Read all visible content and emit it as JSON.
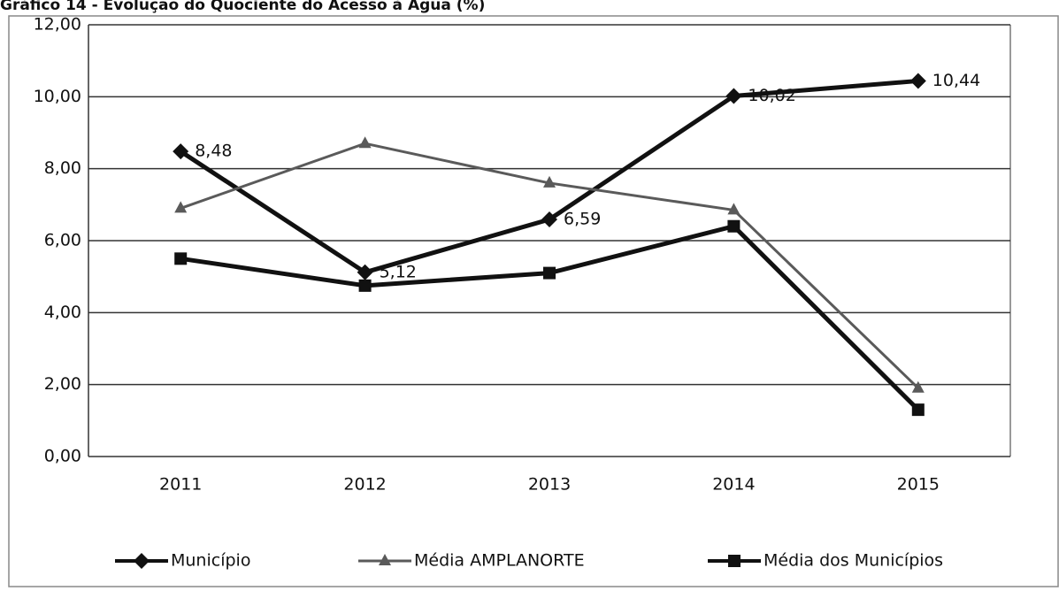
{
  "chart_data": {
    "type": "line",
    "title": "Gráfico 14 - Evolução do Quociente do Acesso à Água (%)",
    "categories": [
      "2011",
      "2012",
      "2013",
      "2014",
      "2015"
    ],
    "series": [
      {
        "name": "Município",
        "color": "#111111",
        "marker": "diamond",
        "values": [
          8.48,
          5.12,
          6.59,
          10.02,
          10.44
        ],
        "value_labels": [
          "8,48",
          "5,12",
          "6,59",
          "10,02",
          "10,44"
        ]
      },
      {
        "name": "Média AMPLANORTE",
        "color": "#5a5a5a",
        "marker": "triangle",
        "values": [
          6.9,
          8.7,
          7.6,
          6.85,
          1.9
        ]
      },
      {
        "name": "Média dos Municípios",
        "color": "#111111",
        "marker": "square",
        "values": [
          5.5,
          4.75,
          5.1,
          6.4,
          1.3
        ]
      }
    ],
    "ylim": [
      0,
      12
    ],
    "yticks": [
      {
        "value": 0,
        "label": "0,00"
      },
      {
        "value": 2,
        "label": "2,00"
      },
      {
        "value": 4,
        "label": "4,00"
      },
      {
        "value": 6,
        "label": "6,00"
      },
      {
        "value": 8,
        "label": "8,00"
      },
      {
        "value": 10,
        "label": "10,00"
      },
      {
        "value": 12,
        "label": "12,00"
      }
    ],
    "grid": true,
    "legend": "bottom"
  }
}
